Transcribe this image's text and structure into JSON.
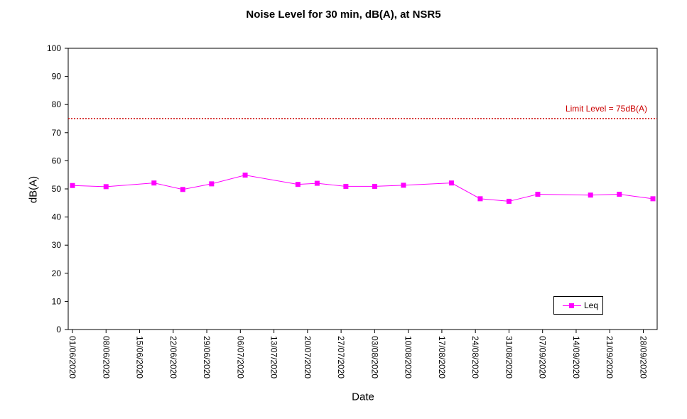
{
  "chart_data": {
    "type": "line",
    "title": "Noise Level for 30 min, dB(A), at NSR5",
    "xlabel": "Date",
    "ylabel": "dB(A)",
    "ylim": [
      0,
      100
    ],
    "y_ticks": [
      "0",
      "10",
      "20",
      "30",
      "40",
      "50",
      "60",
      "70",
      "80",
      "90",
      "100"
    ],
    "x_range": [
      "01/06/2020",
      "30/09/2020"
    ],
    "x_ticks": [
      "01/06/2020",
      "08/06/2020",
      "15/06/2020",
      "22/06/2020",
      "29/06/2020",
      "06/07/2020",
      "13/07/2020",
      "20/07/2020",
      "27/07/2020",
      "03/08/2020",
      "10/08/2020",
      "17/08/2020",
      "24/08/2020",
      "31/08/2020",
      "07/09/2020",
      "14/09/2020",
      "21/09/2020",
      "28/09/2020"
    ],
    "series": [
      {
        "name": "Leq",
        "color": "#ff00ff",
        "x": [
          "01/06/2020",
          "08/06/2020",
          "18/06/2020",
          "24/06/2020",
          "30/06/2020",
          "07/07/2020",
          "18/07/2020",
          "22/07/2020",
          "28/07/2020",
          "03/08/2020",
          "09/08/2020",
          "19/08/2020",
          "25/08/2020",
          "31/08/2020",
          "06/09/2020",
          "17/09/2020",
          "23/09/2020",
          "30/09/2020"
        ],
        "y": [
          51.2,
          50.8,
          52.1,
          49.8,
          51.8,
          54.9,
          51.6,
          52.0,
          50.9,
          50.9,
          51.3,
          52.1,
          46.5,
          45.6,
          48.1,
          47.8,
          48.1,
          46.5
        ]
      }
    ],
    "reference_line": {
      "label": "Limit Level  = 75dB(A)",
      "y": 75,
      "color": "#cc0000",
      "style": "dotted"
    },
    "legend": {
      "position": "bottom-right",
      "entries": [
        "Leq"
      ]
    },
    "grid": false
  }
}
